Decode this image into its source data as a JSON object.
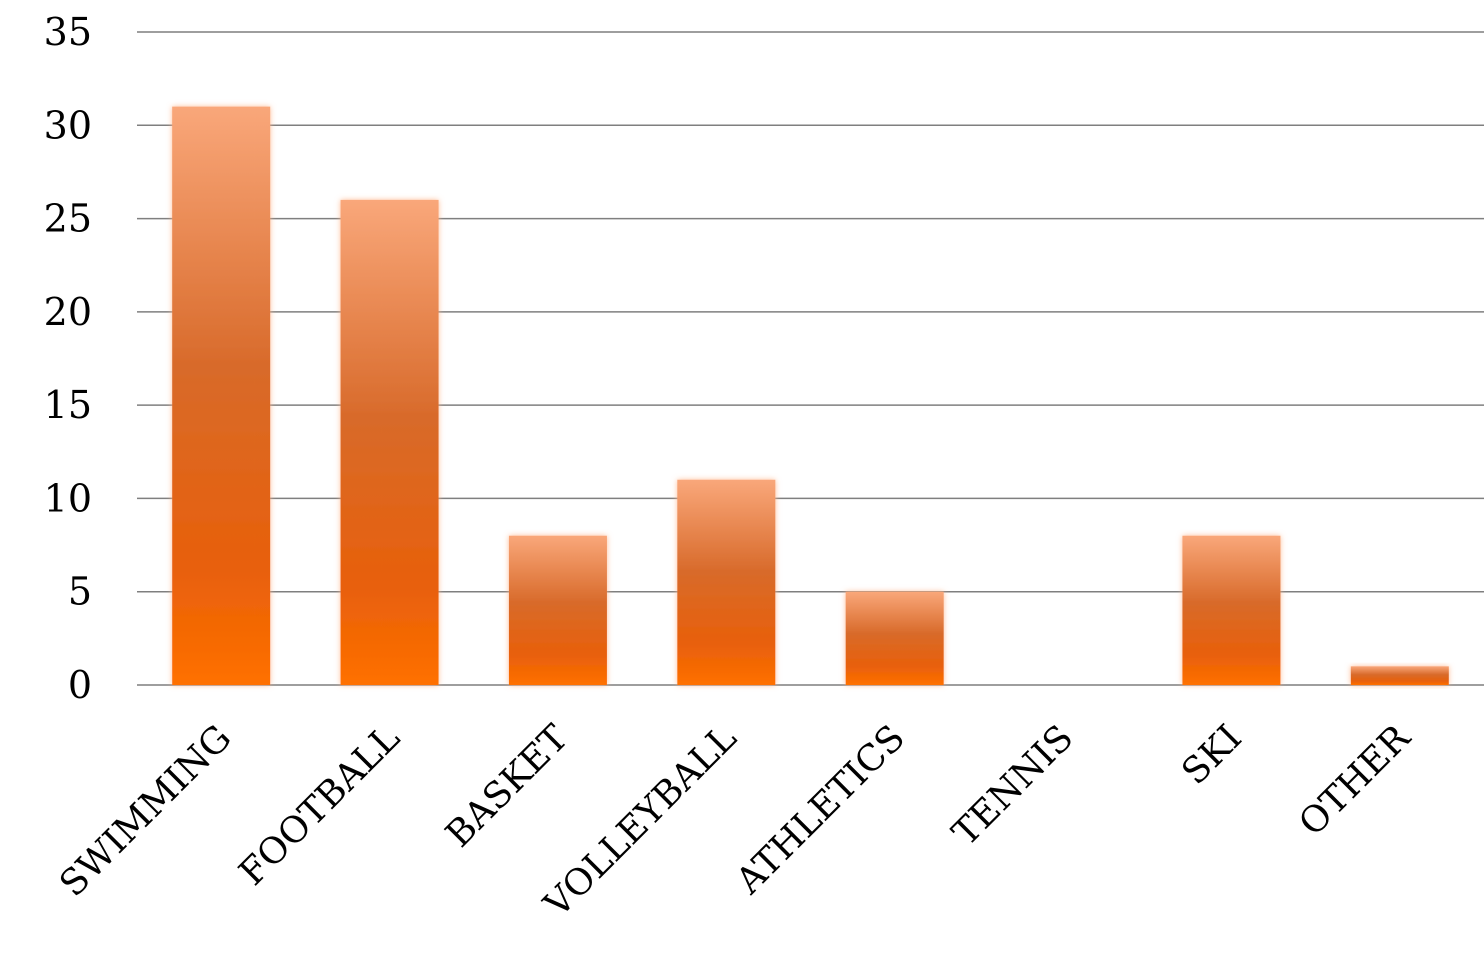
{
  "chart_data": {
    "type": "bar",
    "categories": [
      "SWIMMING",
      "FOOTBALL",
      "BASKET",
      "VOLLEYBALL",
      "ATHLETICS",
      "TENNIS",
      "SKI",
      "OTHER"
    ],
    "values": [
      31,
      26,
      8,
      11,
      5,
      0,
      8,
      1
    ],
    "ylim": [
      0,
      35
    ],
    "yticks": [
      "0",
      "5",
      "10",
      "15",
      "20",
      "25",
      "30",
      "35"
    ],
    "grid": true,
    "legend": "none",
    "title": "",
    "xlabel": "",
    "ylabel": "",
    "colors": {
      "bar_top": "#f9a77a",
      "bar_mid": "#d86a2a",
      "bar_bottom": "#ff7000",
      "glow": "#ffd2b8",
      "grid": "#7f7f7f"
    }
  }
}
